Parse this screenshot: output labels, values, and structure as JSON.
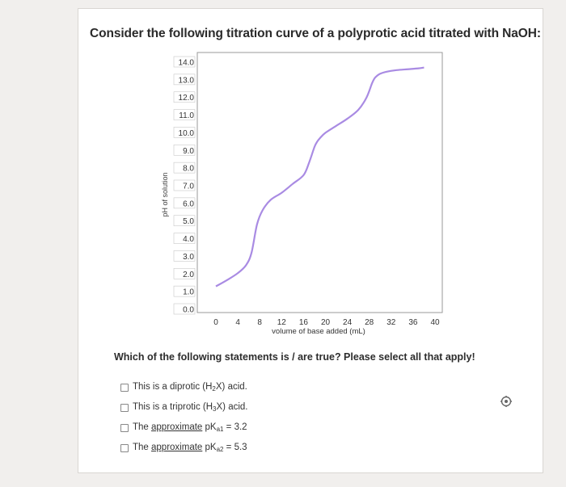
{
  "question": {
    "title": "Consider the following titration curve of a polyprotic acid titrated with NaOH:",
    "prompt": "Which of the following statements is / are true? Please select all that apply!"
  },
  "chart_data": {
    "type": "line",
    "ylabel": "pH of solution",
    "xlabel": "volume of base added (mL)",
    "x_ticks": [
      "0",
      "4",
      "8",
      "12",
      "16",
      "20",
      "24",
      "28",
      "32",
      "36",
      "40"
    ],
    "y_ticks": [
      "14.0",
      "13.0",
      "12.0",
      "11.0",
      "10.0",
      "9.0",
      "8.0",
      "7.0",
      "6.0",
      "5.0",
      "4.0",
      "3.0",
      "2.0",
      "1.0",
      "0.0"
    ],
    "xlim": [
      0,
      40
    ],
    "ylim": [
      0,
      14
    ],
    "grid": false,
    "line_color": "#a98be3",
    "series": [
      {
        "x": [
          0,
          2,
          4,
          5.5,
          6.5,
          7.5,
          8.5,
          10,
          12,
          14,
          16,
          17,
          18,
          18.5,
          19,
          20,
          22,
          24,
          26,
          27.5,
          28.5,
          29,
          29.5,
          30,
          31,
          33,
          35,
          37,
          38
        ],
        "y": [
          1.3,
          1.65,
          2.05,
          2.5,
          3.2,
          4.8,
          5.6,
          6.2,
          6.6,
          7.1,
          7.6,
          8.3,
          9.2,
          9.5,
          9.7,
          10.0,
          10.4,
          10.8,
          11.3,
          12.0,
          12.8,
          13.1,
          13.25,
          13.35,
          13.45,
          13.55,
          13.6,
          13.65,
          13.7
        ]
      }
    ]
  },
  "options": [
    {
      "label_parts": [
        "This is a diprotic (H",
        "2",
        "X) acid."
      ]
    },
    {
      "label_parts": [
        "This is a triprotic (H",
        "3",
        "X) acid."
      ]
    },
    {
      "prefix": "The ",
      "emph": "approximate",
      "mid": " pK",
      "sub": "a1",
      "suffix": " = 3.2"
    },
    {
      "prefix": "The ",
      "emph": "approximate",
      "mid": " pK",
      "sub": "a2",
      "suffix": " = 5.3"
    }
  ],
  "icons": {
    "corner": "gear-like-icon"
  }
}
